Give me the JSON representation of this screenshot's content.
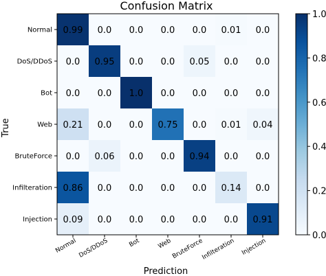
{
  "chart_data": {
    "type": "heatmap",
    "title": "Confusion Matrix",
    "xlabel": "Prediction",
    "ylabel": "True",
    "row_labels": [
      "Normal",
      "DoS/DDoS",
      "Bot",
      "Web",
      "BruteForce",
      "Infilteration",
      "Injection"
    ],
    "col_labels": [
      "Normal",
      "DoS/DDoS",
      "Bot",
      "Web",
      "BruteForce",
      "Infilteration",
      "Injection"
    ],
    "values": [
      [
        0.99,
        0.0,
        0.0,
        0.0,
        0.0,
        0.01,
        0.0
      ],
      [
        0.0,
        0.95,
        0.0,
        0.0,
        0.05,
        0.0,
        0.0
      ],
      [
        0.0,
        0.0,
        1.0,
        0.0,
        0.0,
        0.0,
        0.0
      ],
      [
        0.21,
        0.0,
        0.0,
        0.75,
        0.0,
        0.01,
        0.04
      ],
      [
        0.0,
        0.06,
        0.0,
        0.0,
        0.94,
        0.0,
        0.0
      ],
      [
        0.86,
        0.0,
        0.0,
        0.0,
        0.0,
        0.14,
        0.0
      ],
      [
        0.09,
        0.0,
        0.0,
        0.0,
        0.0,
        0.0,
        0.91
      ]
    ],
    "cell_labels": [
      [
        "0.99",
        "0.0",
        "0.0",
        "0.0",
        "0.0",
        "0.01",
        "0.0"
      ],
      [
        "0.0",
        "0.95",
        "0.0",
        "0.0",
        "0.05",
        "0.0",
        "0.0"
      ],
      [
        "0.0",
        "0.0",
        "1.0",
        "0.0",
        "0.0",
        "0.0",
        "0.0"
      ],
      [
        "0.21",
        "0.0",
        "0.0",
        "0.75",
        "0.0",
        "0.01",
        "0.04"
      ],
      [
        "0.0",
        "0.06",
        "0.0",
        "0.0",
        "0.94",
        "0.0",
        "0.0"
      ],
      [
        "0.86",
        "0.0",
        "0.0",
        "0.0",
        "0.0",
        "0.14",
        "0.0"
      ],
      [
        "0.09",
        "0.0",
        "0.0",
        "0.0",
        "0.0",
        "0.0",
        "0.91"
      ]
    ],
    "colorbar": {
      "range": [
        0.0,
        1.0
      ],
      "ticks": [
        0.0,
        0.2,
        0.4,
        0.6,
        0.8,
        1.0
      ],
      "tick_labels": [
        "0.0",
        "0.2",
        "0.4",
        "0.6",
        "0.8",
        "1.0"
      ],
      "colormap": "Blues",
      "color_low": "#f7fbff",
      "color_high": "#08306b"
    },
    "legend": "colorbar right",
    "grid": false
  }
}
